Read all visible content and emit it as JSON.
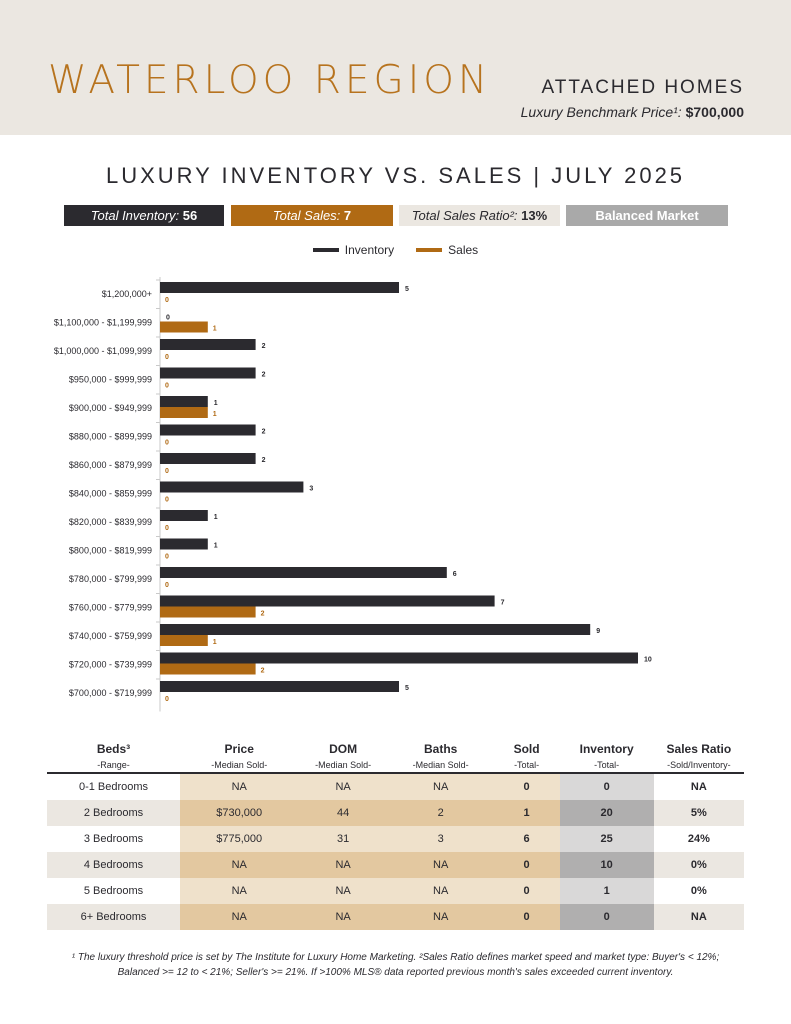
{
  "header": {
    "region": "WATERLOO REGION",
    "property_type": "ATTACHED HOMES",
    "benchmark_label": "Luxury Benchmark Price¹:",
    "benchmark_value": "$700,000"
  },
  "stats": {
    "inventory_label": "Total Inventory:",
    "inventory_value": "56",
    "sales_label": "Total Sales:",
    "sales_value": "7",
    "ratio_label": "Total Sales Ratio²:",
    "ratio_value": "13%",
    "market": "Balanced Market"
  },
  "colors": {
    "inventory": "#2b2a2f",
    "sales": "#b06a14"
  },
  "chart_data": {
    "type": "bar",
    "orientation": "horizontal",
    "title": "LUXURY INVENTORY VS. SALES | JULY 2025",
    "categories": [
      "$1,200,000+",
      "$1,100,000 - $1,199,999",
      "$1,000,000 - $1,099,999",
      "$950,000 - $999,999",
      "$900,000 - $949,999",
      "$880,000 - $899,999",
      "$860,000 - $879,999",
      "$840,000 - $859,999",
      "$820,000 - $839,999",
      "$800,000 - $819,999",
      "$780,000 - $799,999",
      "$760,000 - $779,999",
      "$740,000 - $759,999",
      "$720,000 - $739,999",
      "$700,000 - $719,999"
    ],
    "series": [
      {
        "name": "Inventory",
        "values": [
          5,
          0,
          2,
          2,
          1,
          2,
          2,
          3,
          1,
          1,
          6,
          7,
          9,
          10,
          5
        ]
      },
      {
        "name": "Sales",
        "values": [
          0,
          1,
          0,
          0,
          1,
          0,
          0,
          0,
          0,
          0,
          0,
          2,
          1,
          2,
          0
        ]
      }
    ],
    "xlim": [
      0,
      10
    ],
    "legend": "top-center",
    "grid": false
  },
  "table": {
    "headers": [
      {
        "title": "Beds³",
        "sub": "-Range-"
      },
      {
        "title": "Price",
        "sub": "-Median Sold-"
      },
      {
        "title": "DOM",
        "sub": "-Median Sold-"
      },
      {
        "title": "Baths",
        "sub": "-Median Sold-"
      },
      {
        "title": "Sold",
        "sub": "-Total-"
      },
      {
        "title": "Inventory",
        "sub": "-Total-"
      },
      {
        "title": "Sales Ratio",
        "sub": "-Sold/Inventory-"
      }
    ],
    "rows": [
      [
        "0-1 Bedrooms",
        "NA",
        "NA",
        "NA",
        "0",
        "0",
        "NA"
      ],
      [
        "2 Bedrooms",
        "$730,000",
        "44",
        "2",
        "1",
        "20",
        "5%"
      ],
      [
        "3 Bedrooms",
        "$775,000",
        "31",
        "3",
        "6",
        "25",
        "24%"
      ],
      [
        "4 Bedrooms",
        "NA",
        "NA",
        "NA",
        "0",
        "10",
        "0%"
      ],
      [
        "5 Bedrooms",
        "NA",
        "NA",
        "NA",
        "0",
        "1",
        "0%"
      ],
      [
        "6+ Bedrooms",
        "NA",
        "NA",
        "NA",
        "0",
        "0",
        "NA"
      ]
    ]
  },
  "footnote": {
    "line1": "¹ The luxury threshold price is set by The Institute for Luxury Home Marketing. ²Sales Ratio defines market speed and market type: Buyer's < 12%;",
    "line2": "Balanced >= 12 to < 21%; Seller's >= 21%. If >100% MLS® data reported previous month's sales exceeded current inventory."
  }
}
